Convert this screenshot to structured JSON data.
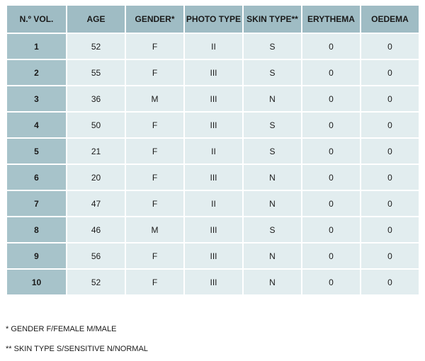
{
  "table": {
    "headers": [
      "N.º VOL.",
      "AGE",
      "GENDER*",
      "PHOTO TYPE",
      "SKIN TYPE**",
      "ERYTHEMA",
      "OEDEMA"
    ],
    "rows": [
      [
        "1",
        "52",
        "F",
        "II",
        "S",
        "0",
        "0"
      ],
      [
        "2",
        "55",
        "F",
        "III",
        "S",
        "0",
        "0"
      ],
      [
        "3",
        "36",
        "M",
        "III",
        "N",
        "0",
        "0"
      ],
      [
        "4",
        "50",
        "F",
        "III",
        "S",
        "0",
        "0"
      ],
      [
        "5",
        "21",
        "F",
        "II",
        "S",
        "0",
        "0"
      ],
      [
        "6",
        "20",
        "F",
        "III",
        "N",
        "0",
        "0"
      ],
      [
        "7",
        "47",
        "F",
        "II",
        "N",
        "0",
        "0"
      ],
      [
        "8",
        "46",
        "M",
        "III",
        "S",
        "0",
        "0"
      ],
      [
        "9",
        "56",
        "F",
        "III",
        "N",
        "0",
        "0"
      ],
      [
        "10",
        "52",
        "F",
        "III",
        "N",
        "0",
        "0"
      ]
    ]
  },
  "notes": {
    "gender": "* GENDER F/FEMALE M/MALE",
    "skin_type": "** SKIN TYPE S/SENSITIVE N/NORMAL"
  },
  "colors": {
    "header_bg": "#9fbcc4",
    "first_column_bg": "#a7c3ca",
    "cell_bg": "#e2edef"
  }
}
